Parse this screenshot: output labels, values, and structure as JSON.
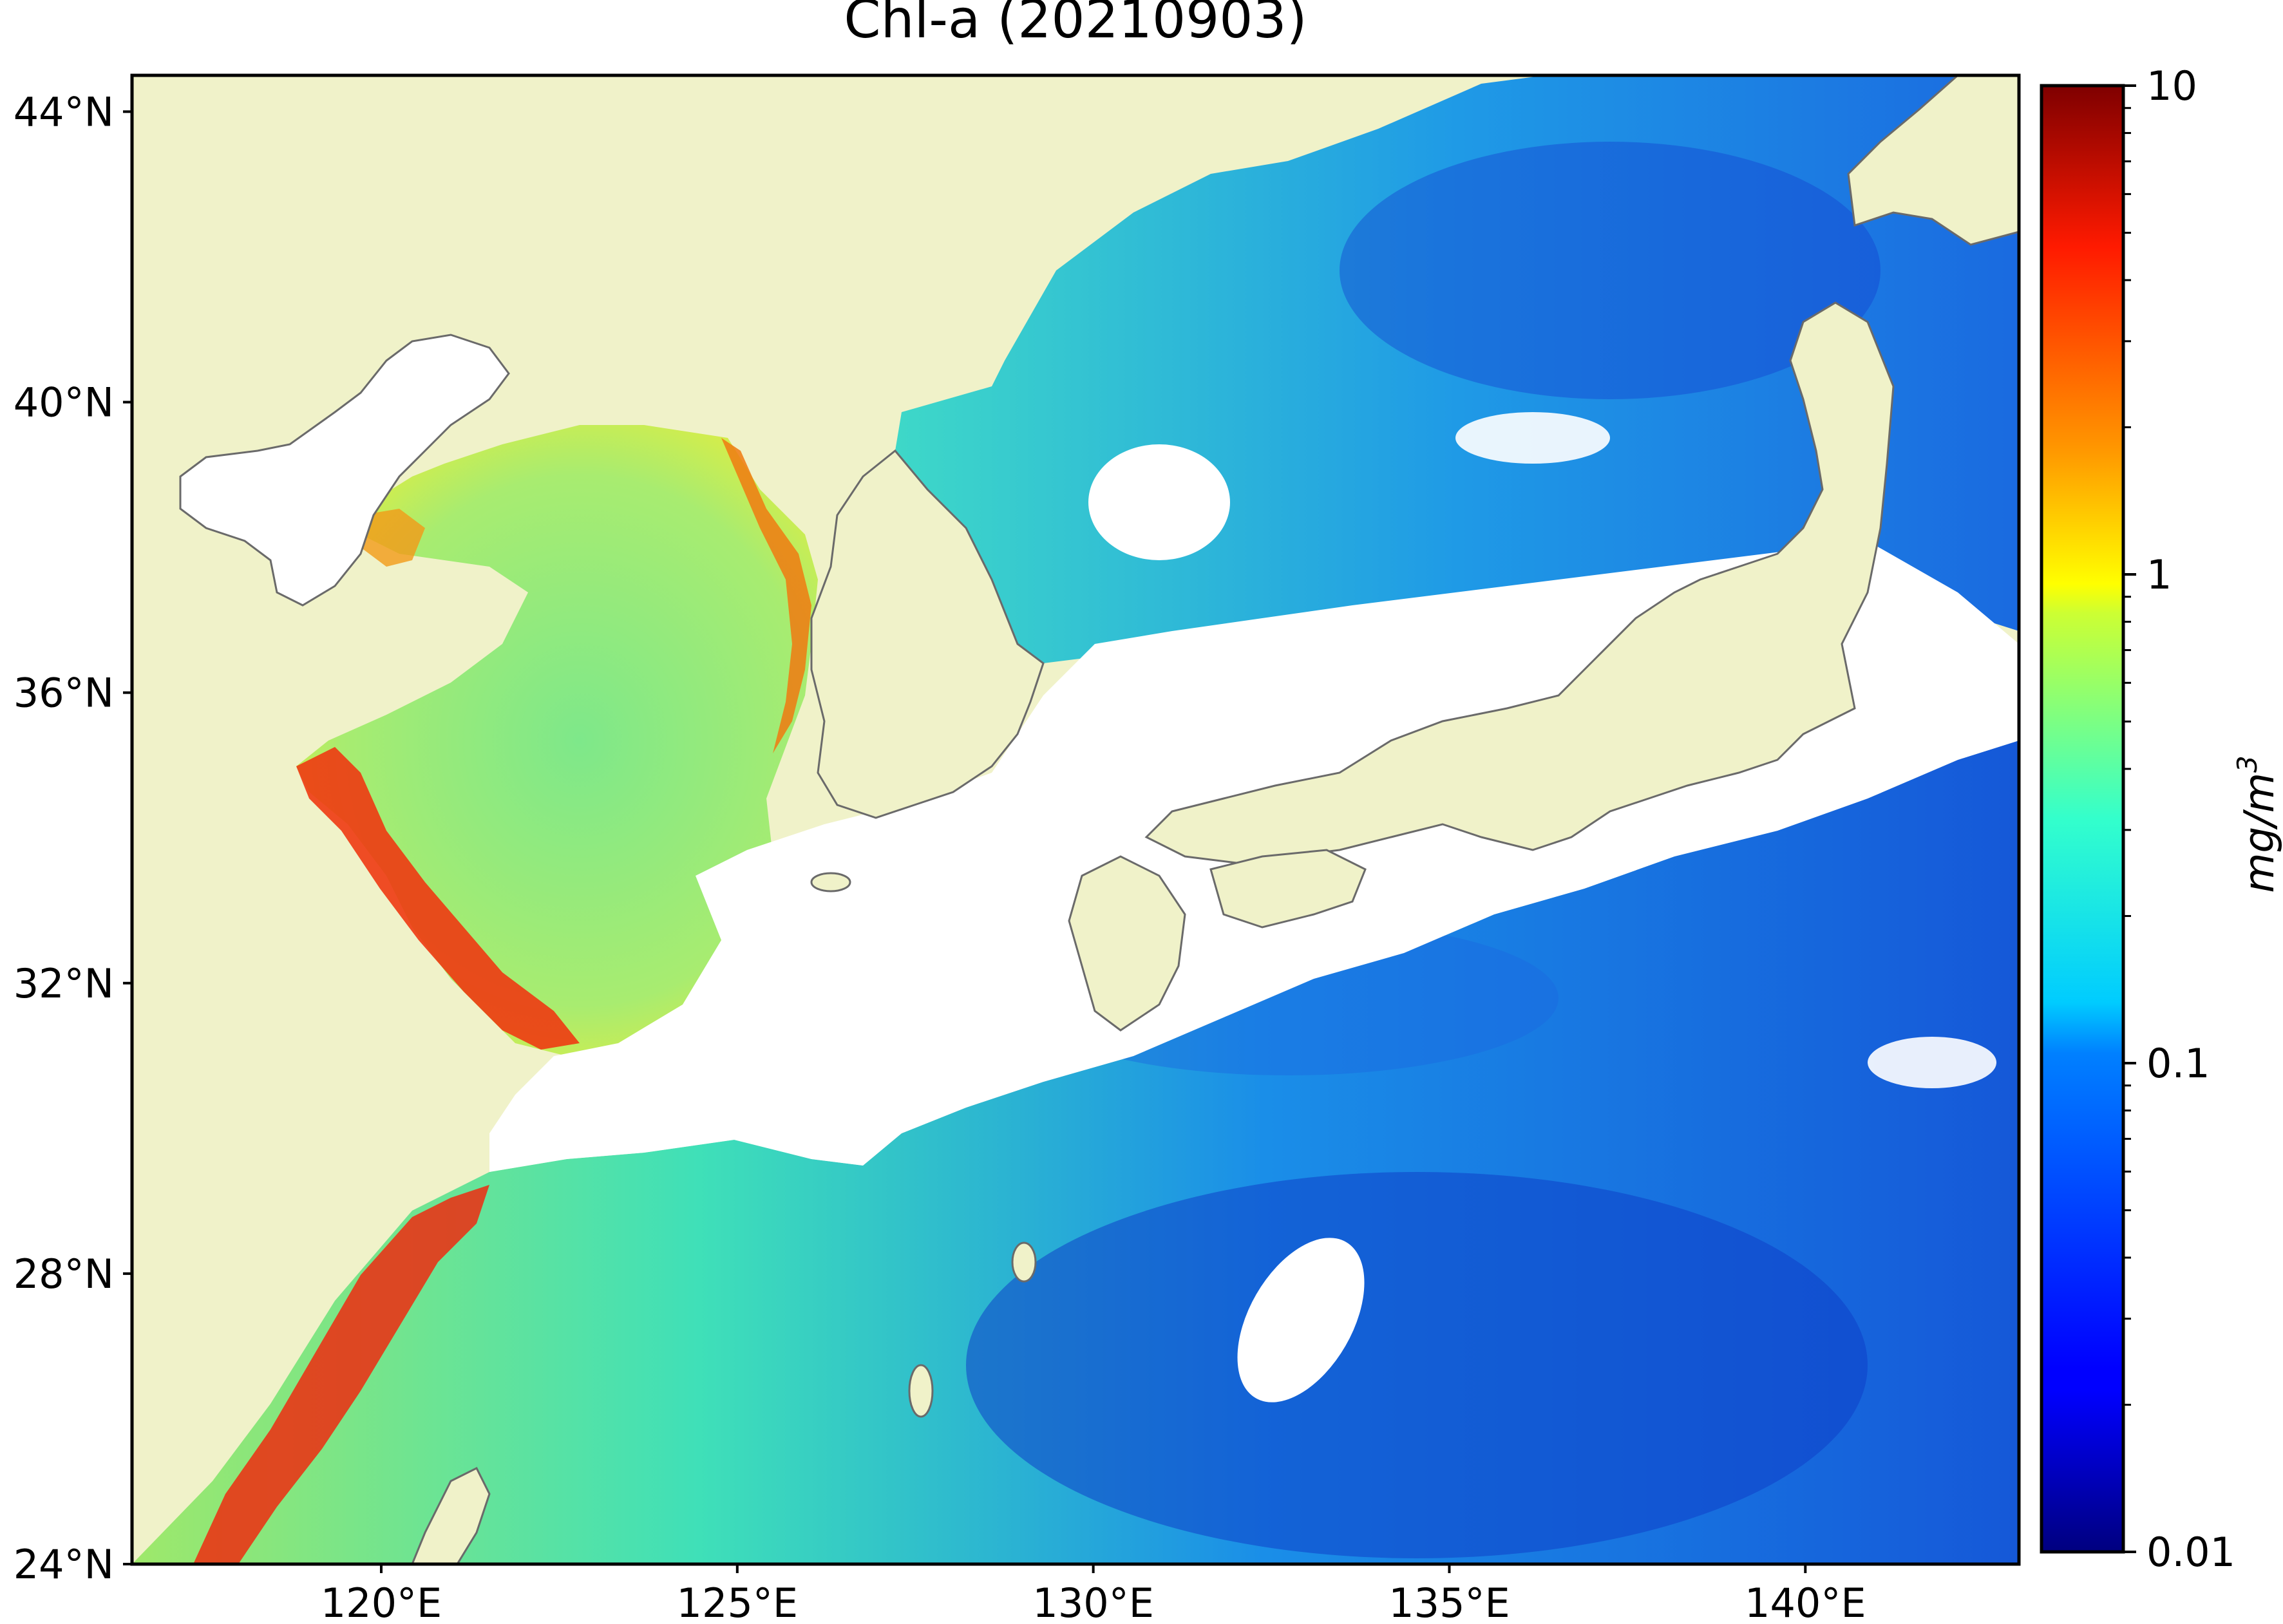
{
  "title": "Chl-a (20210903)",
  "map": {
    "lat_labels": [
      "44°N",
      "40°N",
      "36°N",
      "32°N",
      "28°N",
      "24°N"
    ],
    "lat_values": [
      44,
      40,
      36,
      32,
      28,
      24
    ],
    "lon_labels": [
      "120°E",
      "125°E",
      "130°E",
      "135°E",
      "140°E"
    ],
    "lon_values": [
      120,
      125,
      130,
      135,
      140
    ],
    "extent": {
      "lon": [
        116.5,
        143
      ],
      "lat": [
        24,
        44.5
      ]
    },
    "land_color": "#f0f2c9",
    "nodata_color": "#ffffff",
    "coast_color": "#6a6a6a"
  },
  "colorbar": {
    "label": "mg/m",
    "label_sup": "3",
    "tick_labels": [
      "10",
      "1",
      "0.1",
      "0.01"
    ],
    "tick_values": [
      10,
      1,
      0.1,
      0.01
    ],
    "scale": "log",
    "colormap": "jet",
    "range": [
      0.01,
      10
    ]
  }
}
